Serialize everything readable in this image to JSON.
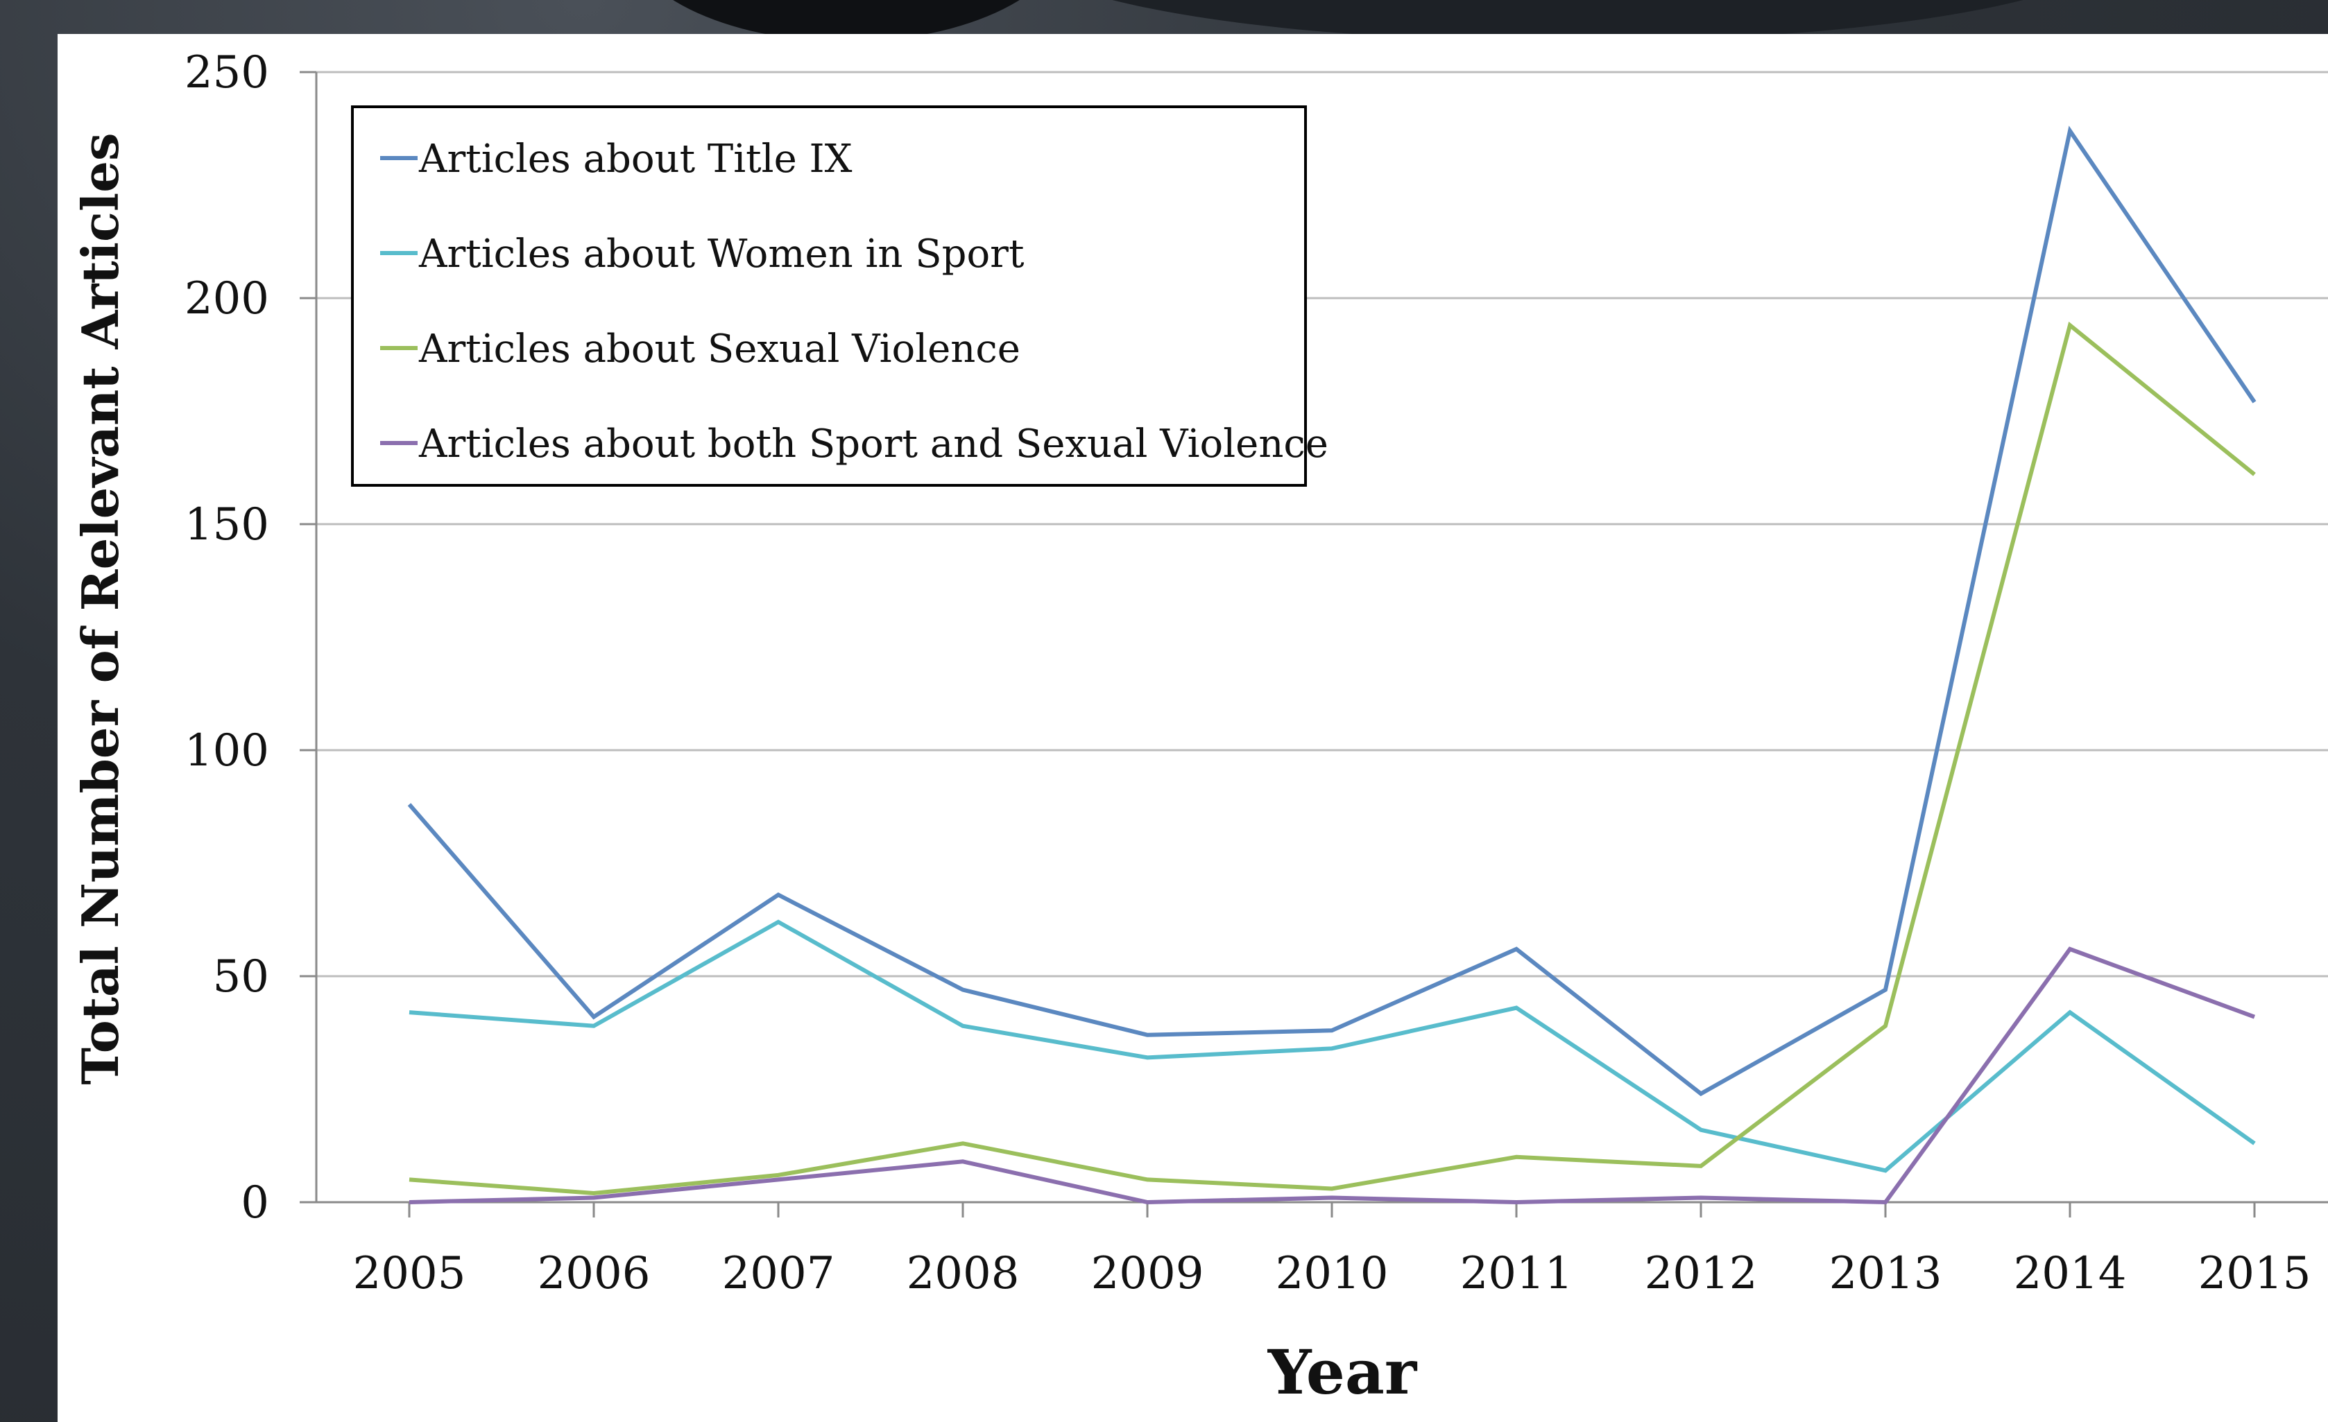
{
  "chart_data": {
    "type": "line",
    "title": "",
    "xlabel": "Year",
    "ylabel": "Total Number of Relevant Articles",
    "x": [
      "2005",
      "2006",
      "2007",
      "2008",
      "2009",
      "2010",
      "2011",
      "2012",
      "2013",
      "2014",
      "2015"
    ],
    "ylim": [
      0,
      250
    ],
    "yticks": [
      "0",
      "50",
      "100",
      "150",
      "200",
      "250"
    ],
    "grid": "horizontal",
    "legend_position": "top-left",
    "series": [
      {
        "name": "Articles about Title IX",
        "color": "#5b88c0",
        "values": [
          88,
          41,
          68,
          47,
          37,
          38,
          56,
          24,
          47,
          237,
          177
        ]
      },
      {
        "name": "Articles about Women in Sport",
        "color": "#58bccc",
        "values": [
          42,
          39,
          62,
          39,
          32,
          34,
          43,
          16,
          7,
          42,
          13
        ]
      },
      {
        "name": "Articles about Sexual Violence",
        "color": "#9bbf5c",
        "values": [
          5,
          2,
          6,
          13,
          5,
          3,
          10,
          8,
          39,
          194,
          161
        ]
      },
      {
        "name": "Articles about both Sport and Sexual Violence",
        "color": "#8b6fae",
        "values": [
          0,
          1,
          5,
          9,
          0,
          1,
          0,
          1,
          0,
          56,
          41
        ]
      }
    ]
  }
}
